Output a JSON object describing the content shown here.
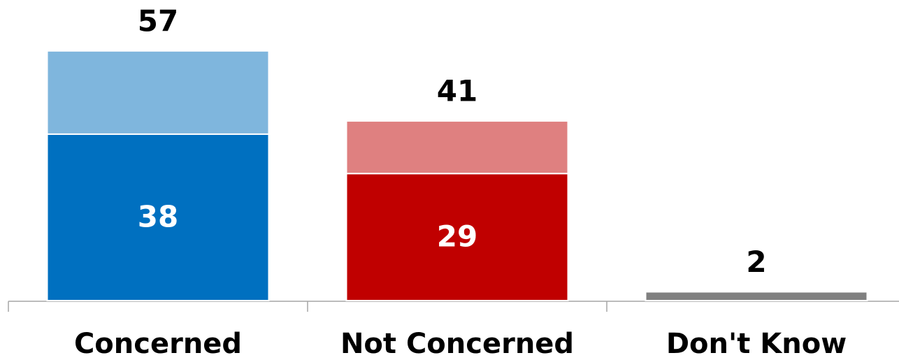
{
  "chart_data": {
    "type": "stacked_bar",
    "categories": [
      "Concerned",
      "Not Concerned",
      "Don't Know"
    ],
    "series": [
      {
        "values": [
          38,
          29,
          2
        ],
        "colors": [
          "#0070c0",
          "#c00000",
          "#808080"
        ],
        "show_labels": true
      },
      {
        "values": [
          19,
          12,
          null
        ],
        "colors": [
          "#7fb6dd",
          "#df8080",
          null
        ],
        "show_labels": false
      }
    ],
    "totals": [
      57,
      41,
      2
    ],
    "ylim": [
      0,
      60
    ]
  }
}
